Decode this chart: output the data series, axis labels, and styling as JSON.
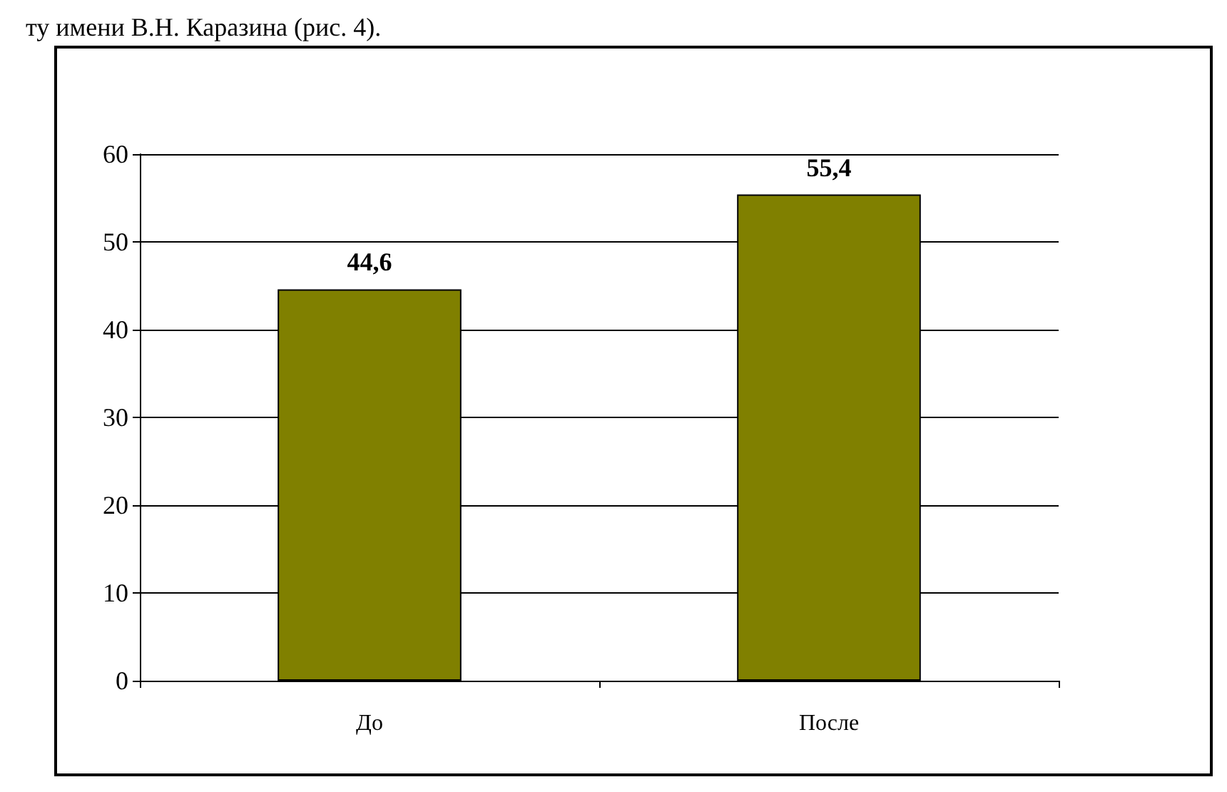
{
  "chart_data": {
    "type": "bar",
    "annotations": [
      "ту имени В.Н. Каразина (рис. 4)."
    ],
    "categories": [
      "До",
      "После"
    ],
    "values": [
      44.6,
      55.4
    ],
    "value_labels": [
      "44,6",
      "55,4"
    ],
    "color": "#808000",
    "ylim": [
      0,
      60
    ],
    "yticks": [
      0,
      10,
      20,
      30,
      40,
      50,
      60
    ],
    "grid": "y"
  }
}
